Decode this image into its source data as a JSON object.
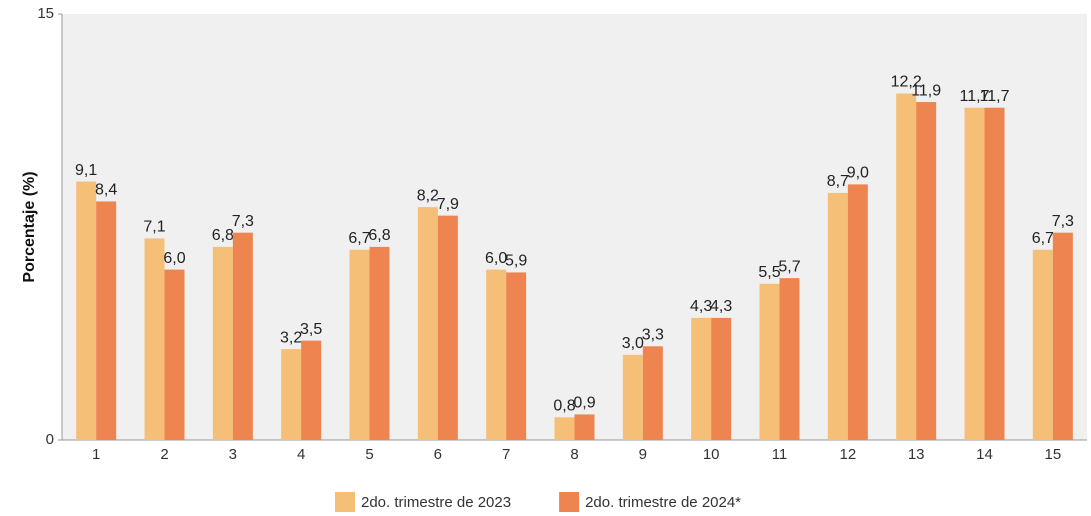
{
  "chart_data": {
    "type": "bar",
    "ylabel": "Porcentaje (%)",
    "categories": [
      "1",
      "2",
      "3",
      "4",
      "5",
      "6",
      "7",
      "8",
      "9",
      "10",
      "11",
      "12",
      "13",
      "14",
      "15"
    ],
    "series": [
      {
        "name": "2do. trimestre de 2023",
        "color": "#f6bf78",
        "values": [
          9.1,
          7.1,
          6.8,
          3.2,
          6.7,
          8.2,
          6.0,
          0.8,
          3.0,
          4.3,
          5.5,
          8.7,
          12.2,
          11.7,
          6.7
        ],
        "value_labels": [
          "9,1",
          "7,1",
          "6,8",
          "3,2",
          "6,7",
          "8,2",
          "6,0",
          "0,8",
          "3,0",
          "4,3",
          "5,5",
          "8,7",
          "12,2",
          "11,7",
          "6,7"
        ]
      },
      {
        "name": "2do. trimestre de 2024*",
        "color": "#ee8550",
        "values": [
          8.4,
          6.0,
          7.3,
          3.5,
          6.8,
          7.9,
          5.9,
          0.9,
          3.3,
          4.3,
          5.7,
          9.0,
          11.9,
          11.7,
          7.3
        ],
        "value_labels": [
          "8,4",
          "6,0",
          "7,3",
          "3,5",
          "6,8",
          "7,9",
          "5,9",
          "0,9",
          "3,3",
          "4,3",
          "5,7",
          "9,0",
          "11,9",
          "11,7",
          "7,3"
        ]
      }
    ],
    "ylim": [
      0,
      15
    ],
    "yticks": [
      0,
      15
    ],
    "grid": false,
    "legend": "bottom"
  }
}
